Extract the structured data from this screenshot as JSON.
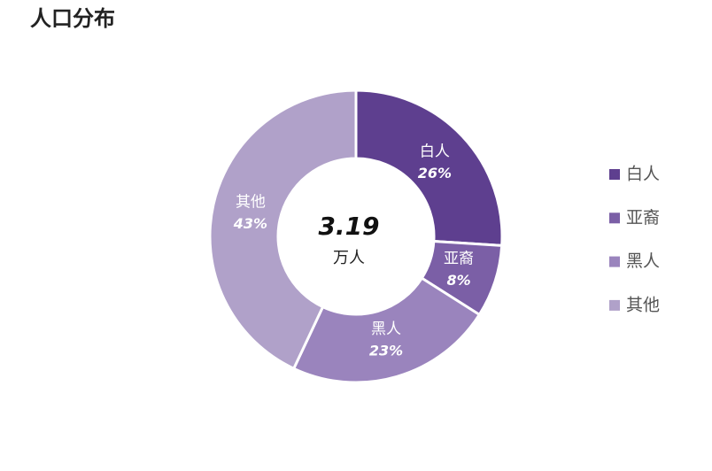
{
  "chart_data": {
    "type": "donut",
    "title": "人口分布",
    "center_value": 3.19,
    "center_unit": "万人",
    "categories": [
      "白人",
      "亚裔",
      "黑人",
      "其他"
    ],
    "values": [
      26,
      8,
      23,
      43
    ],
    "value_labels": [
      "26%",
      "8%",
      "23%",
      "43%"
    ],
    "colors": [
      "#5e3f8f",
      "#7b5fa6",
      "#9a84bd",
      "#b0a1c9"
    ],
    "legend": "right"
  }
}
